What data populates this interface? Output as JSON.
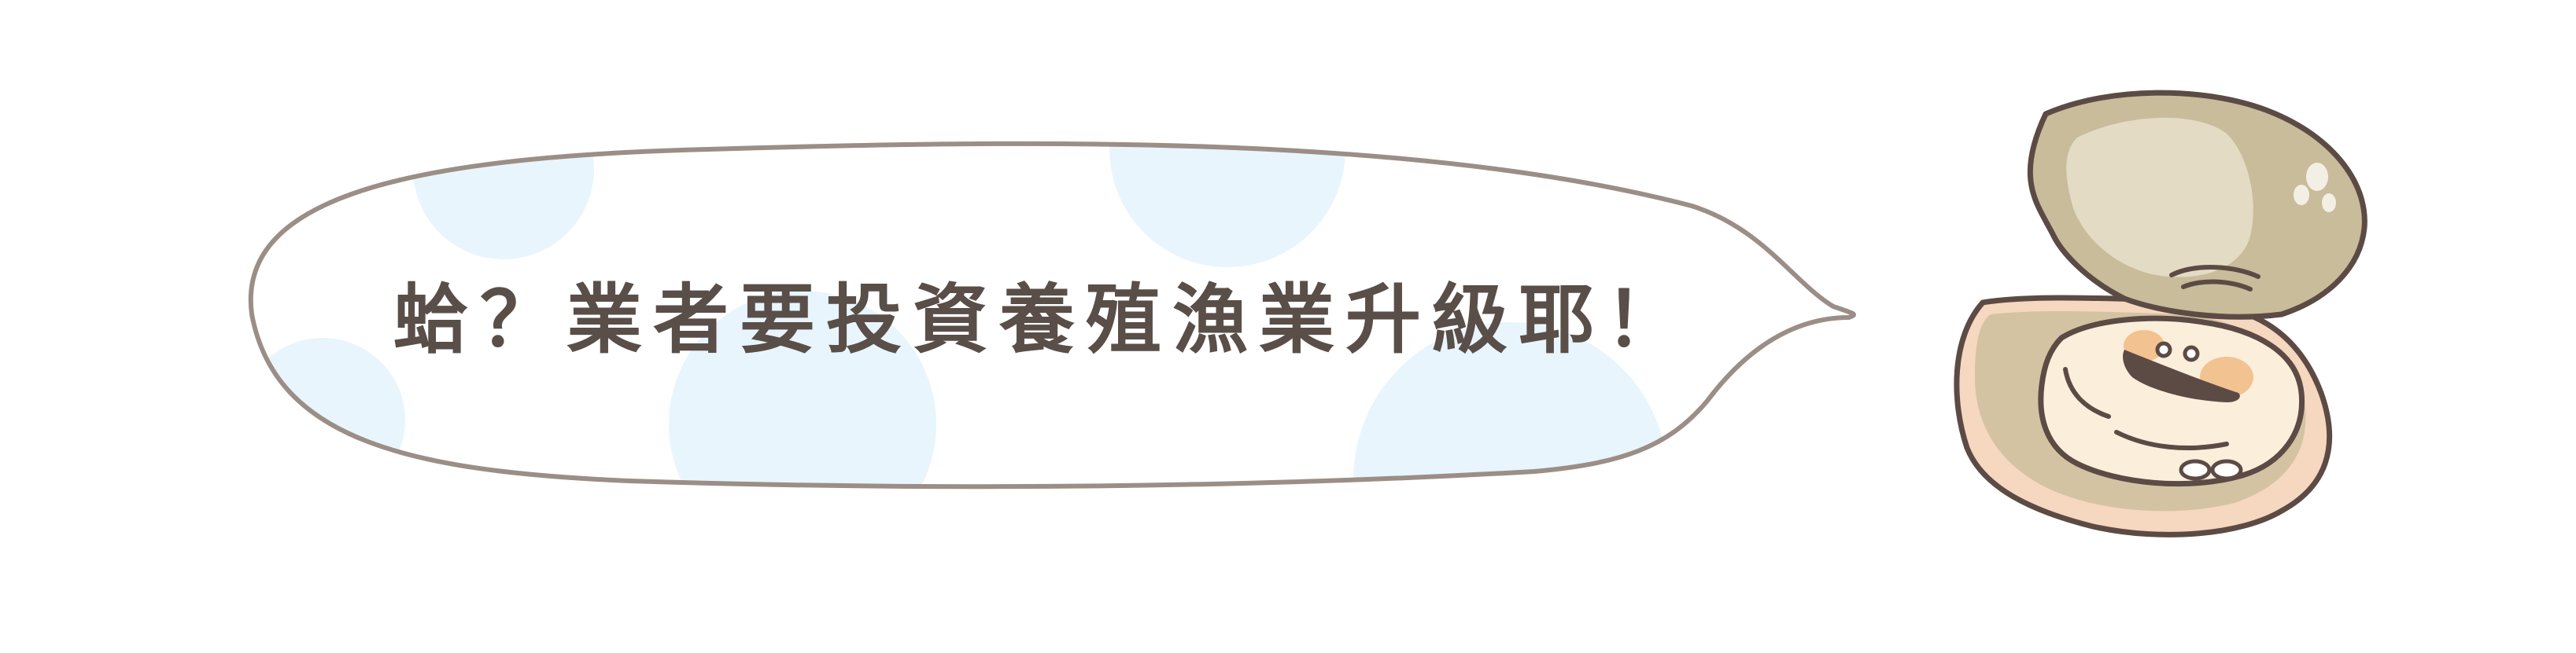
{
  "speech_bubble": {
    "text": "蛤？業者要投資養殖漁業升級耶！"
  },
  "colors": {
    "bubble_outline": "#9b8e86",
    "bubble_dots": "#e8f5fc",
    "text": "#5a4e49",
    "shell_top": "#c8bc9a",
    "shell_top_inner": "#e4dbc5",
    "shell_bottom": "#f6d7bf",
    "oyster_body": "#fbeedb",
    "oyster_cheek": "#f3c291",
    "oyster_mouth": "#5c4b45",
    "outline": "#5c4b45"
  },
  "character": {
    "icon": "oyster-mascot-icon"
  }
}
